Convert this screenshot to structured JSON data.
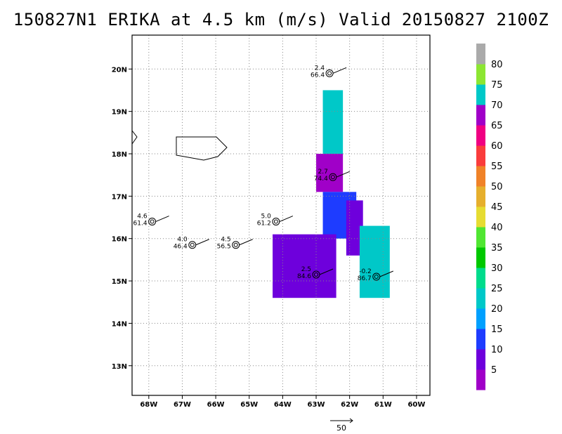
{
  "title": "150827N1 ERIKA at 4.5 km (m/s) Valid 20150827  2100Z",
  "chart_data": {
    "type": "heatmap",
    "title": "150827N1 ERIKA at 4.5 km (m/s) Valid 20150827  2100Z",
    "units": "m/s",
    "xlim": [
      -68.5,
      -59.6
    ],
    "ylim": [
      12.3,
      20.8
    ],
    "grid": true,
    "x_ticks": [
      -68,
      -67,
      -66,
      -65,
      -64,
      -63,
      -62,
      -61,
      -60
    ],
    "x_tick_labels": [
      "68W",
      "67W",
      "66W",
      "65W",
      "64W",
      "63W",
      "62W",
      "61W",
      "60W"
    ],
    "y_ticks": [
      13,
      14,
      15,
      16,
      17,
      18,
      19,
      20
    ],
    "y_tick_labels": [
      "13N",
      "14N",
      "15N",
      "16N",
      "17N",
      "18N",
      "19N",
      "20N"
    ],
    "colorbar": {
      "labels": [
        "5",
        "10",
        "15",
        "20",
        "25",
        "30",
        "35",
        "40",
        "45",
        "50",
        "55",
        "60",
        "65",
        "70",
        "75",
        "80"
      ],
      "colors": [
        "#a000c8",
        "#6e00dc",
        "#1e3cff",
        "#00a0ff",
        "#00c8c8",
        "#00dc8c",
        "#00c800",
        "#50e632",
        "#e6dc32",
        "#e6af2d",
        "#f08228",
        "#fa3c3c",
        "#f00082",
        "#a000c8",
        "#00c8c8",
        "#8ce632",
        "#aaaaaa"
      ]
    },
    "wind_regions": [
      {
        "lon": [
          -62.8,
          -62.2
        ],
        "lat": [
          18.0,
          19.5
        ],
        "speed": 22
      },
      {
        "lon": [
          -63.0,
          -62.2
        ],
        "lat": [
          17.1,
          18.0
        ],
        "speed": 65
      },
      {
        "lon": [
          -62.8,
          -61.8
        ],
        "lat": [
          16.0,
          17.1
        ],
        "speed": 12
      },
      {
        "lon": [
          -62.1,
          -61.6
        ],
        "lat": [
          15.6,
          16.9
        ],
        "speed": 8
      },
      {
        "lon": [
          -61.7,
          -60.8
        ],
        "lat": [
          14.6,
          16.3
        ],
        "speed": 22
      },
      {
        "lon": [
          -64.3,
          -62.4
        ],
        "lat": [
          14.6,
          16.1
        ],
        "speed": 6
      }
    ],
    "stations": [
      {
        "lon": -62.6,
        "lat": 19.9,
        "top": "2.4",
        "bottom": "66.4"
      },
      {
        "lon": -62.5,
        "lat": 17.45,
        "top": "2.7",
        "bottom": "74.4"
      },
      {
        "lon": -67.9,
        "lat": 16.4,
        "top": "4.6",
        "bottom": "61.4"
      },
      {
        "lon": -66.7,
        "lat": 15.85,
        "top": "4.0",
        "bottom": "46.4"
      },
      {
        "lon": -65.4,
        "lat": 15.85,
        "top": "4.5",
        "bottom": "56.5"
      },
      {
        "lon": -64.2,
        "lat": 16.4,
        "top": "5.0",
        "bottom": "61.2"
      },
      {
        "lon": -63.0,
        "lat": 15.15,
        "top": "2.5",
        "bottom": "84.6"
      },
      {
        "lon": -61.2,
        "lat": 15.1,
        "top": "-0.2",
        "bottom": "86.7"
      }
    ],
    "reference_vector": "50"
  }
}
